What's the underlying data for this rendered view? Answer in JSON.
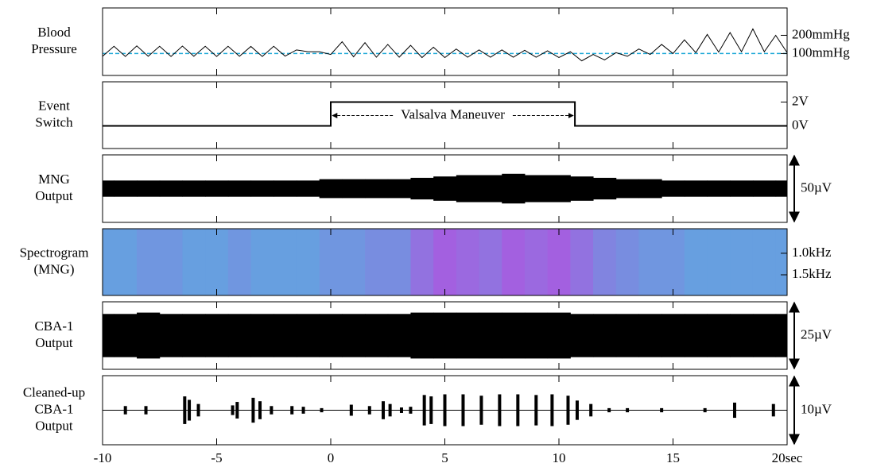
{
  "chart_data": [
    {
      "type": "line",
      "label": [
        "Blood",
        "Pressure"
      ],
      "x": [
        -10,
        -9.5,
        -9,
        -8.5,
        -8,
        -7.5,
        -7,
        -6.5,
        -6,
        -5.5,
        -5,
        -4.5,
        -4,
        -3.5,
        -3,
        -2.5,
        -2,
        -1.5,
        -1,
        -0.5,
        0,
        0.5,
        1,
        1.5,
        2,
        2.5,
        3,
        3.5,
        4,
        4.5,
        5,
        5.5,
        6,
        6.5,
        7,
        7.5,
        8,
        8.5,
        9,
        9.5,
        10,
        10.5,
        11,
        11.5,
        12,
        12.5,
        13,
        13.5,
        14,
        14.5,
        15,
        15.5,
        16,
        16.5,
        17,
        17.5,
        18,
        18.5,
        19,
        19.5,
        20
      ],
      "values": [
        85,
        140,
        84,
        142,
        85,
        140,
        84,
        141,
        85,
        140,
        84,
        140,
        85,
        139,
        84,
        140,
        86,
        120,
        110,
        110,
        95,
        165,
        82,
        160,
        80,
        150,
        80,
        145,
        78,
        135,
        78,
        125,
        80,
        120,
        80,
        120,
        80,
        118,
        80,
        115,
        78,
        110,
        60,
        95,
        65,
        105,
        85,
        125,
        95,
        150,
        100,
        175,
        105,
        205,
        108,
        215,
        110,
        235,
        110,
        200,
        105
      ],
      "color": "#000000",
      "reference": 100,
      "reference_color": "#1aa7d6",
      "xlim": [
        -10,
        20
      ],
      "ylim": [
        -20,
        350
      ],
      "yticks": [
        {
          "value": 200,
          "label": "200mmHg"
        },
        {
          "value": 100,
          "label": "100mmHg"
        }
      ]
    },
    {
      "type": "step",
      "label": [
        "Event",
        "Switch"
      ],
      "x": [
        -10,
        0,
        0,
        10.7,
        10.7,
        20
      ],
      "values": [
        0,
        0,
        2,
        2,
        0,
        0
      ],
      "color": "#000000",
      "annotation": "Valsalva Maneuver",
      "xlim": [
        -10,
        20
      ],
      "ylim": [
        -1.9,
        3.7
      ],
      "yticks": [
        {
          "value": 2,
          "label": "2V"
        },
        {
          "value": 0,
          "label": "0V"
        }
      ]
    },
    {
      "type": "envelope",
      "label": [
        "MNG",
        "Output"
      ],
      "x": [
        -10,
        -9,
        -8,
        -7,
        -6,
        -5,
        -4,
        -3,
        -2,
        -1,
        0,
        1,
        2,
        3,
        4,
        5,
        6,
        7,
        8,
        9,
        10,
        11,
        12,
        13,
        14,
        15,
        16,
        17,
        18,
        19,
        20
      ],
      "values": [
        6,
        6,
        6,
        6,
        6,
        6,
        6,
        6,
        6,
        6,
        7,
        7,
        7,
        7,
        8,
        9,
        10,
        10,
        11,
        10,
        10,
        9,
        8,
        7,
        7,
        6,
        6,
        6,
        6,
        6,
        6
      ],
      "color": "#000000",
      "scale_label": "50µV",
      "xlim": [
        -10,
        20
      ],
      "ylim": [
        -25,
        25
      ]
    },
    {
      "type": "heatmap",
      "label": [
        "Spectrogram",
        "(MNG)"
      ],
      "x": [
        -10,
        -9,
        -8,
        -7,
        -6,
        -5,
        -4,
        -3,
        -2,
        -1,
        0,
        1,
        2,
        3,
        4,
        5,
        6,
        7,
        8,
        9,
        10,
        11,
        12,
        13,
        14,
        15,
        16,
        17,
        18,
        19,
        20
      ],
      "values": [
        0.3,
        0.3,
        0.35,
        0.35,
        0.3,
        0.3,
        0.35,
        0.3,
        0.3,
        0.3,
        0.35,
        0.35,
        0.4,
        0.4,
        0.55,
        0.65,
        0.6,
        0.55,
        0.65,
        0.6,
        0.65,
        0.55,
        0.45,
        0.4,
        0.35,
        0.35,
        0.3,
        0.3,
        0.3,
        0.3,
        0.3
      ],
      "low_color": "#33d6e0",
      "high_color": "#e020e0",
      "xlim": [
        -10,
        20
      ],
      "ylim": [
        1.98,
        0.43
      ],
      "yticks": [
        {
          "value": 1.0,
          "label": "1.0kHz"
        },
        {
          "value": 1.5,
          "label": "1.5kHz"
        }
      ]
    },
    {
      "type": "envelope",
      "label": [
        "CBA-1",
        "Output"
      ],
      "x": [
        -10,
        -9,
        -8,
        -7,
        -6,
        -5,
        -4,
        -3,
        -2,
        -1,
        0,
        1,
        2,
        3,
        4,
        5,
        6,
        7,
        8,
        9,
        10,
        11,
        12,
        13,
        14,
        15,
        16,
        17,
        18,
        19,
        20
      ],
      "values": [
        8,
        8,
        8.5,
        8,
        8,
        8,
        8,
        8,
        8,
        8,
        8,
        8,
        8,
        8,
        8.5,
        8.5,
        8.5,
        8.5,
        8.5,
        8.5,
        8.5,
        8,
        8,
        8,
        8,
        8,
        8,
        8,
        8,
        8,
        8
      ],
      "color": "#000000",
      "scale_label": "25µV",
      "xlim": [
        -10,
        20
      ],
      "ylim": [
        -12.5,
        12.5
      ]
    },
    {
      "type": "burst",
      "label": [
        "Cleaned-up",
        "CBA-1",
        "Output"
      ],
      "x": [
        -9.0,
        -8.1,
        -6.4,
        -6.2,
        -5.8,
        -4.3,
        -4.1,
        -3.4,
        -3.1,
        -2.6,
        -1.7,
        -1.2,
        -0.4,
        0.9,
        1.7,
        2.3,
        2.6,
        3.1,
        3.5,
        4.1,
        4.4,
        5.0,
        5.8,
        6.6,
        7.4,
        8.2,
        9.0,
        9.7,
        10.4,
        10.8,
        11.4,
        12.2,
        13.0,
        14.5,
        16.4,
        17.7,
        19.4
      ],
      "values": [
        0.6,
        0.6,
        2.0,
        1.5,
        0.9,
        0.7,
        1.2,
        1.8,
        1.3,
        0.6,
        0.6,
        0.5,
        0.3,
        0.8,
        0.6,
        1.3,
        0.9,
        0.4,
        0.5,
        2.2,
        2.0,
        2.3,
        2.3,
        2.1,
        2.3,
        2.3,
        2.2,
        2.3,
        2.1,
        1.4,
        0.9,
        0.3,
        0.3,
        0.3,
        0.3,
        1.1,
        0.9
      ],
      "color": "#000000",
      "scale_label": "10µV",
      "xlim": [
        -10,
        20
      ],
      "ylim": [
        -5,
        5
      ],
      "xticks": [
        -10,
        -5,
        0,
        5,
        10,
        15,
        {
          "value": 20,
          "label": "20sec"
        }
      ]
    }
  ]
}
